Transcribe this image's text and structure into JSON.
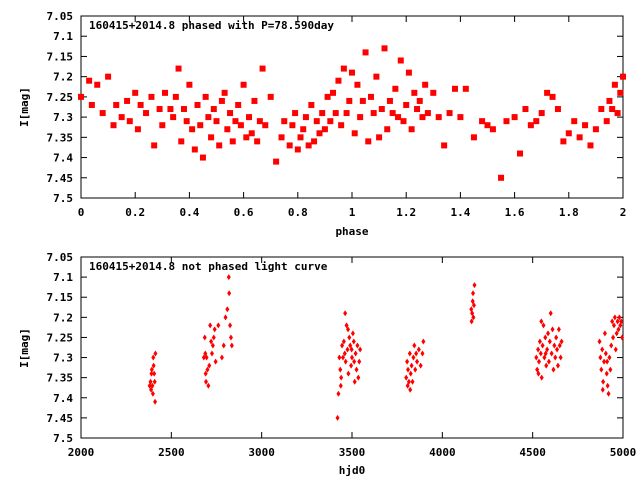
{
  "chart_data": [
    {
      "type": "scatter",
      "title": "160415+2014.8 phased with P=78.590day",
      "xlabel": "phase",
      "ylabel": "I[mag]",
      "xlim": [
        0,
        2
      ],
      "ylim": [
        7.05,
        7.5
      ],
      "y_inverted": true,
      "grid": false,
      "legend": "none",
      "marker": "filled-square",
      "color": "#ff0000",
      "x_ticks": [
        "0",
        "0.2",
        "0.4",
        "0.6",
        "0.8",
        "1",
        "1.2",
        "1.4",
        "1.6",
        "1.8",
        "2"
      ],
      "y_ticks": [
        "7.05",
        "7.1",
        "7.15",
        "7.2",
        "7.25",
        "7.3",
        "7.35",
        "7.4",
        "7.45",
        "7.5"
      ],
      "points": [
        [
          0.0,
          7.25
        ],
        [
          0.03,
          7.21
        ],
        [
          0.04,
          7.27
        ],
        [
          0.06,
          7.22
        ],
        [
          0.08,
          7.29
        ],
        [
          0.1,
          7.2
        ],
        [
          0.12,
          7.32
        ],
        [
          0.13,
          7.27
        ],
        [
          0.15,
          7.3
        ],
        [
          0.17,
          7.26
        ],
        [
          0.18,
          7.31
        ],
        [
          0.2,
          7.24
        ],
        [
          0.21,
          7.33
        ],
        [
          0.22,
          7.27
        ],
        [
          0.24,
          7.29
        ],
        [
          0.26,
          7.25
        ],
        [
          0.27,
          7.37
        ],
        [
          0.29,
          7.28
        ],
        [
          0.3,
          7.32
        ],
        [
          0.31,
          7.24
        ],
        [
          0.33,
          7.28
        ],
        [
          0.34,
          7.3
        ],
        [
          0.35,
          7.25
        ],
        [
          0.36,
          7.18
        ],
        [
          0.37,
          7.36
        ],
        [
          0.38,
          7.28
        ],
        [
          0.39,
          7.31
        ],
        [
          0.4,
          7.22
        ],
        [
          0.41,
          7.33
        ],
        [
          0.42,
          7.38
        ],
        [
          0.43,
          7.27
        ],
        [
          0.44,
          7.32
        ],
        [
          0.45,
          7.4
        ],
        [
          0.46,
          7.25
        ],
        [
          0.47,
          7.3
        ],
        [
          0.48,
          7.35
        ],
        [
          0.49,
          7.28
        ],
        [
          0.5,
          7.31
        ],
        [
          0.51,
          7.37
        ],
        [
          0.52,
          7.26
        ],
        [
          0.53,
          7.24
        ],
        [
          0.54,
          7.33
        ],
        [
          0.55,
          7.29
        ],
        [
          0.56,
          7.36
        ],
        [
          0.57,
          7.31
        ],
        [
          0.58,
          7.27
        ],
        [
          0.59,
          7.32
        ],
        [
          0.6,
          7.22
        ],
        [
          0.61,
          7.35
        ],
        [
          0.62,
          7.3
        ],
        [
          0.63,
          7.34
        ],
        [
          0.64,
          7.26
        ],
        [
          0.65,
          7.36
        ],
        [
          0.66,
          7.31
        ],
        [
          0.67,
          7.18
        ],
        [
          0.68,
          7.32
        ],
        [
          0.7,
          7.25
        ],
        [
          0.72,
          7.41
        ],
        [
          0.74,
          7.35
        ],
        [
          0.75,
          7.31
        ],
        [
          0.77,
          7.37
        ],
        [
          0.78,
          7.32
        ],
        [
          0.79,
          7.29
        ],
        [
          0.8,
          7.38
        ],
        [
          0.81,
          7.35
        ],
        [
          0.82,
          7.33
        ],
        [
          0.83,
          7.3
        ],
        [
          0.84,
          7.37
        ],
        [
          0.85,
          7.27
        ],
        [
          0.86,
          7.36
        ],
        [
          0.87,
          7.31
        ],
        [
          0.88,
          7.34
        ],
        [
          0.89,
          7.29
        ],
        [
          0.9,
          7.33
        ],
        [
          0.91,
          7.25
        ],
        [
          0.92,
          7.31
        ],
        [
          0.93,
          7.24
        ],
        [
          0.94,
          7.29
        ],
        [
          0.95,
          7.21
        ],
        [
          0.96,
          7.32
        ],
        [
          0.97,
          7.18
        ],
        [
          0.98,
          7.29
        ],
        [
          0.99,
          7.26
        ],
        [
          1.0,
          7.19
        ],
        [
          1.01,
          7.34
        ],
        [
          1.02,
          7.22
        ],
        [
          1.03,
          7.3
        ],
        [
          1.04,
          7.26
        ],
        [
          1.05,
          7.14
        ],
        [
          1.06,
          7.36
        ],
        [
          1.07,
          7.25
        ],
        [
          1.08,
          7.29
        ],
        [
          1.09,
          7.2
        ],
        [
          1.1,
          7.35
        ],
        [
          1.11,
          7.28
        ],
        [
          1.12,
          7.13
        ],
        [
          1.13,
          7.33
        ],
        [
          1.14,
          7.26
        ],
        [
          1.15,
          7.29
        ],
        [
          1.16,
          7.23
        ],
        [
          1.17,
          7.3
        ],
        [
          1.18,
          7.16
        ],
        [
          1.19,
          7.31
        ],
        [
          1.2,
          7.27
        ],
        [
          1.21,
          7.19
        ],
        [
          1.22,
          7.33
        ],
        [
          1.23,
          7.24
        ],
        [
          1.24,
          7.28
        ],
        [
          1.25,
          7.26
        ],
        [
          1.26,
          7.3
        ],
        [
          1.27,
          7.22
        ],
        [
          1.28,
          7.29
        ],
        [
          1.3,
          7.24
        ],
        [
          1.32,
          7.3
        ],
        [
          1.34,
          7.37
        ],
        [
          1.36,
          7.29
        ],
        [
          1.38,
          7.23
        ],
        [
          1.4,
          7.3
        ],
        [
          1.42,
          7.23
        ],
        [
          1.45,
          7.35
        ],
        [
          1.48,
          7.31
        ],
        [
          1.5,
          7.32
        ],
        [
          1.52,
          7.33
        ],
        [
          1.55,
          7.45
        ],
        [
          1.57,
          7.31
        ],
        [
          1.6,
          7.3
        ],
        [
          1.62,
          7.39
        ],
        [
          1.64,
          7.28
        ],
        [
          1.66,
          7.32
        ],
        [
          1.68,
          7.31
        ],
        [
          1.7,
          7.29
        ],
        [
          1.72,
          7.24
        ],
        [
          1.74,
          7.25
        ],
        [
          1.76,
          7.28
        ],
        [
          1.78,
          7.36
        ],
        [
          1.8,
          7.34
        ],
        [
          1.82,
          7.31
        ],
        [
          1.84,
          7.35
        ],
        [
          1.86,
          7.32
        ],
        [
          1.88,
          7.37
        ],
        [
          1.9,
          7.33
        ],
        [
          1.92,
          7.28
        ],
        [
          1.94,
          7.31
        ],
        [
          1.95,
          7.26
        ],
        [
          1.96,
          7.28
        ],
        [
          1.97,
          7.22
        ],
        [
          1.98,
          7.29
        ],
        [
          1.99,
          7.24
        ],
        [
          2.0,
          7.2
        ]
      ]
    },
    {
      "type": "scatter",
      "title": "160415+2014.8 not phased light curve",
      "xlabel": "hjd0",
      "ylabel": "I[mag]",
      "xlim": [
        2000,
        5000
      ],
      "ylim": [
        7.05,
        7.5
      ],
      "y_inverted": true,
      "grid": false,
      "legend": "none",
      "marker": "small-diamond",
      "color": "#ff0000",
      "x_ticks": [
        "2000",
        "2500",
        "3000",
        "3500",
        "4000",
        "4500",
        "5000"
      ],
      "y_ticks": [
        "7.05",
        "7.1",
        "7.15",
        "7.2",
        "7.25",
        "7.3",
        "7.35",
        "7.4",
        "7.45",
        "7.5"
      ],
      "points": [
        [
          2380,
          7.37
        ],
        [
          2385,
          7.36
        ],
        [
          2390,
          7.34
        ],
        [
          2395,
          7.37
        ],
        [
          2398,
          7.39
        ],
        [
          2400,
          7.3
        ],
        [
          2402,
          7.32
        ],
        [
          2405,
          7.34
        ],
        [
          2408,
          7.36
        ],
        [
          2410,
          7.41
        ],
        [
          2412,
          7.29
        ],
        [
          2388,
          7.38
        ],
        [
          2392,
          7.33
        ],
        [
          2680,
          7.3
        ],
        [
          2685,
          7.25
        ],
        [
          2688,
          7.29
        ],
        [
          2690,
          7.34
        ],
        [
          2692,
          7.36
        ],
        [
          2695,
          7.3
        ],
        [
          2700,
          7.33
        ],
        [
          2705,
          7.37
        ],
        [
          2710,
          7.32
        ],
        [
          2715,
          7.22
        ],
        [
          2720,
          7.26
        ],
        [
          2725,
          7.29
        ],
        [
          2730,
          7.27
        ],
        [
          2735,
          7.25
        ],
        [
          2740,
          7.23
        ],
        [
          2745,
          7.31
        ],
        [
          2760,
          7.22
        ],
        [
          2780,
          7.3
        ],
        [
          2790,
          7.27
        ],
        [
          2800,
          7.2
        ],
        [
          2810,
          7.18
        ],
        [
          2820,
          7.14
        ],
        [
          2825,
          7.22
        ],
        [
          2830,
          7.25
        ],
        [
          2835,
          7.27
        ],
        [
          2818,
          7.1
        ],
        [
          3420,
          7.45
        ],
        [
          3430,
          7.3
        ],
        [
          3435,
          7.33
        ],
        [
          3440,
          7.35
        ],
        [
          3445,
          7.27
        ],
        [
          3450,
          7.3
        ],
        [
          3455,
          7.26
        ],
        [
          3460,
          7.29
        ],
        [
          3465,
          7.31
        ],
        [
          3470,
          7.22
        ],
        [
          3475,
          7.28
        ],
        [
          3480,
          7.34
        ],
        [
          3485,
          7.25
        ],
        [
          3490,
          7.27
        ],
        [
          3495,
          7.32
        ],
        [
          3500,
          7.3
        ],
        [
          3505,
          7.24
        ],
        [
          3510,
          7.26
        ],
        [
          3515,
          7.36
        ],
        [
          3520,
          7.29
        ],
        [
          3525,
          7.33
        ],
        [
          3530,
          7.27
        ],
        [
          3535,
          7.35
        ],
        [
          3540,
          7.31
        ],
        [
          3545,
          7.28
        ],
        [
          3425,
          7.39
        ],
        [
          3438,
          7.37
        ],
        [
          3462,
          7.19
        ],
        [
          3478,
          7.23
        ],
        [
          3498,
          7.28
        ],
        [
          3512,
          7.31
        ],
        [
          3800,
          7.35
        ],
        [
          3805,
          7.31
        ],
        [
          3810,
          7.33
        ],
        [
          3815,
          7.36
        ],
        [
          3820,
          7.29
        ],
        [
          3825,
          7.34
        ],
        [
          3830,
          7.32
        ],
        [
          3835,
          7.36
        ],
        [
          3840,
          7.3
        ],
        [
          3845,
          7.27
        ],
        [
          3850,
          7.33
        ],
        [
          3855,
          7.29
        ],
        [
          3860,
          7.31
        ],
        [
          3870,
          7.28
        ],
        [
          3880,
          7.32
        ],
        [
          3890,
          7.29
        ],
        [
          3895,
          7.26
        ],
        [
          3808,
          7.37
        ],
        [
          3822,
          7.38
        ],
        [
          4160,
          7.18
        ],
        [
          4162,
          7.21
        ],
        [
          4165,
          7.19
        ],
        [
          4168,
          7.16
        ],
        [
          4170,
          7.14
        ],
        [
          4172,
          7.2
        ],
        [
          4175,
          7.17
        ],
        [
          4178,
          7.12
        ],
        [
          4520,
          7.3
        ],
        [
          4525,
          7.33
        ],
        [
          4530,
          7.28
        ],
        [
          4535,
          7.31
        ],
        [
          4540,
          7.26
        ],
        [
          4545,
          7.29
        ],
        [
          4550,
          7.35
        ],
        [
          4555,
          7.27
        ],
        [
          4560,
          7.22
        ],
        [
          4565,
          7.3
        ],
        [
          4570,
          7.25
        ],
        [
          4575,
          7.32
        ],
        [
          4580,
          7.28
        ],
        [
          4585,
          7.24
        ],
        [
          4590,
          7.31
        ],
        [
          4595,
          7.26
        ],
        [
          4600,
          7.19
        ],
        [
          4605,
          7.29
        ],
        [
          4610,
          7.23
        ],
        [
          4615,
          7.33
        ],
        [
          4620,
          7.27
        ],
        [
          4625,
          7.3
        ],
        [
          4630,
          7.25
        ],
        [
          4635,
          7.28
        ],
        [
          4640,
          7.32
        ],
        [
          4645,
          7.23
        ],
        [
          4650,
          7.27
        ],
        [
          4655,
          7.3
        ],
        [
          4660,
          7.26
        ],
        [
          4532,
          7.34
        ],
        [
          4548,
          7.21
        ],
        [
          4572,
          7.29
        ],
        [
          4870,
          7.26
        ],
        [
          4875,
          7.3
        ],
        [
          4880,
          7.33
        ],
        [
          4885,
          7.28
        ],
        [
          4890,
          7.36
        ],
        [
          4895,
          7.31
        ],
        [
          4900,
          7.24
        ],
        [
          4905,
          7.29
        ],
        [
          4910,
          7.34
        ],
        [
          4915,
          7.37
        ],
        [
          4920,
          7.39
        ],
        [
          4925,
          7.3
        ],
        [
          4930,
          7.33
        ],
        [
          4935,
          7.27
        ],
        [
          4940,
          7.21
        ],
        [
          4945,
          7.25
        ],
        [
          4950,
          7.22
        ],
        [
          4955,
          7.2
        ],
        [
          4960,
          7.28
        ],
        [
          4965,
          7.24
        ],
        [
          4970,
          7.21
        ],
        [
          4975,
          7.23
        ],
        [
          4980,
          7.2
        ],
        [
          4985,
          7.22
        ],
        [
          4990,
          7.21
        ],
        [
          4995,
          7.25
        ],
        [
          4888,
          7.38
        ],
        [
          4912,
          7.31
        ]
      ]
    }
  ]
}
